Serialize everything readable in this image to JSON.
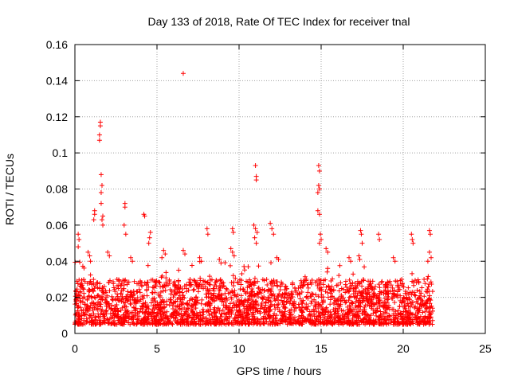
{
  "chart_data": {
    "type": "scatter",
    "title": "Day 133 of 2018, Rate Of TEC Index for receiver tnal",
    "xlabel": "GPS time / hours",
    "ylabel": "ROTI / TECUs",
    "xlim": [
      0,
      25
    ],
    "ylim": [
      0,
      0.16
    ],
    "xticks": [
      0,
      5,
      10,
      15,
      20,
      25
    ],
    "xtick_labels": [
      "0",
      "5",
      "10",
      "15",
      "20",
      "25"
    ],
    "yticks": [
      0,
      0.02,
      0.04,
      0.06,
      0.08,
      0.1,
      0.12,
      0.14,
      0.16
    ],
    "ytick_labels": [
      "0",
      "0.02",
      "0.04",
      "0.06",
      "0.08",
      "0.1",
      "0.12",
      "0.14",
      "0.16"
    ],
    "grid": true,
    "marker": "plus",
    "color": "#ff0000",
    "data_range_hours": [
      0,
      21.8
    ],
    "baseline_band": [
      0.005,
      0.03
    ],
    "series": [
      {
        "name": "ROTI",
        "points": [
          [
            6.6,
            0.144
          ],
          [
            1.55,
            0.117
          ],
          [
            1.55,
            0.115
          ],
          [
            1.5,
            0.11
          ],
          [
            1.5,
            0.107
          ],
          [
            11.0,
            0.093
          ],
          [
            14.85,
            0.093
          ],
          [
            14.9,
            0.09
          ],
          [
            11.05,
            0.087
          ],
          [
            11.05,
            0.085
          ],
          [
            1.6,
            0.088
          ],
          [
            1.65,
            0.082
          ],
          [
            14.85,
            0.082
          ],
          [
            14.9,
            0.08
          ],
          [
            14.8,
            0.078
          ],
          [
            1.6,
            0.078
          ],
          [
            1.6,
            0.072
          ],
          [
            3.05,
            0.072
          ],
          [
            3.05,
            0.07
          ],
          [
            4.2,
            0.066
          ],
          [
            4.25,
            0.065
          ],
          [
            1.2,
            0.068
          ],
          [
            1.2,
            0.066
          ],
          [
            1.15,
            0.063
          ],
          [
            14.8,
            0.068
          ],
          [
            14.9,
            0.066
          ],
          [
            1.7,
            0.065
          ],
          [
            1.65,
            0.063
          ],
          [
            1.7,
            0.06
          ],
          [
            3.0,
            0.06
          ],
          [
            3.1,
            0.055
          ],
          [
            11.9,
            0.061
          ],
          [
            12.0,
            0.058
          ],
          [
            12.1,
            0.055
          ],
          [
            10.9,
            0.06
          ],
          [
            11.0,
            0.058
          ],
          [
            11.1,
            0.056
          ],
          [
            10.95,
            0.053
          ],
          [
            11.05,
            0.05
          ],
          [
            17.4,
            0.057
          ],
          [
            17.45,
            0.055
          ],
          [
            17.5,
            0.05
          ],
          [
            21.6,
            0.057
          ],
          [
            21.65,
            0.055
          ],
          [
            20.5,
            0.055
          ],
          [
            20.55,
            0.052
          ],
          [
            20.6,
            0.05
          ],
          [
            9.6,
            0.058
          ],
          [
            9.65,
            0.056
          ],
          [
            18.5,
            0.055
          ],
          [
            18.55,
            0.052
          ],
          [
            8.05,
            0.058
          ],
          [
            8.1,
            0.055
          ],
          [
            0.2,
            0.055
          ],
          [
            0.25,
            0.052
          ],
          [
            0.2,
            0.048
          ],
          [
            14.95,
            0.055
          ],
          [
            15.0,
            0.052
          ],
          [
            14.9,
            0.05
          ],
          [
            4.6,
            0.056
          ],
          [
            4.55,
            0.053
          ],
          [
            4.5,
            0.05
          ],
          [
            15.3,
            0.047
          ],
          [
            15.4,
            0.045
          ],
          [
            5.4,
            0.046
          ],
          [
            5.5,
            0.044
          ],
          [
            5.3,
            0.042
          ],
          [
            6.6,
            0.046
          ],
          [
            6.7,
            0.044
          ],
          [
            9.5,
            0.047
          ],
          [
            9.6,
            0.045
          ],
          [
            9.7,
            0.043
          ],
          [
            12.3,
            0.042
          ],
          [
            12.4,
            0.041
          ],
          [
            16.7,
            0.042
          ],
          [
            16.8,
            0.04
          ],
          [
            17.3,
            0.043
          ],
          [
            17.35,
            0.041
          ],
          [
            21.6,
            0.045
          ],
          [
            21.7,
            0.042
          ],
          [
            21.5,
            0.04
          ],
          [
            0.8,
            0.045
          ],
          [
            0.9,
            0.043
          ],
          [
            0.95,
            0.04
          ],
          [
            2.0,
            0.045
          ],
          [
            2.1,
            0.043
          ],
          [
            3.4,
            0.042
          ],
          [
            3.5,
            0.04
          ],
          [
            7.6,
            0.042
          ],
          [
            7.7,
            0.04
          ],
          [
            8.8,
            0.041
          ],
          [
            8.9,
            0.039
          ],
          [
            19.4,
            0.042
          ],
          [
            19.5,
            0.04
          ]
        ]
      }
    ]
  }
}
